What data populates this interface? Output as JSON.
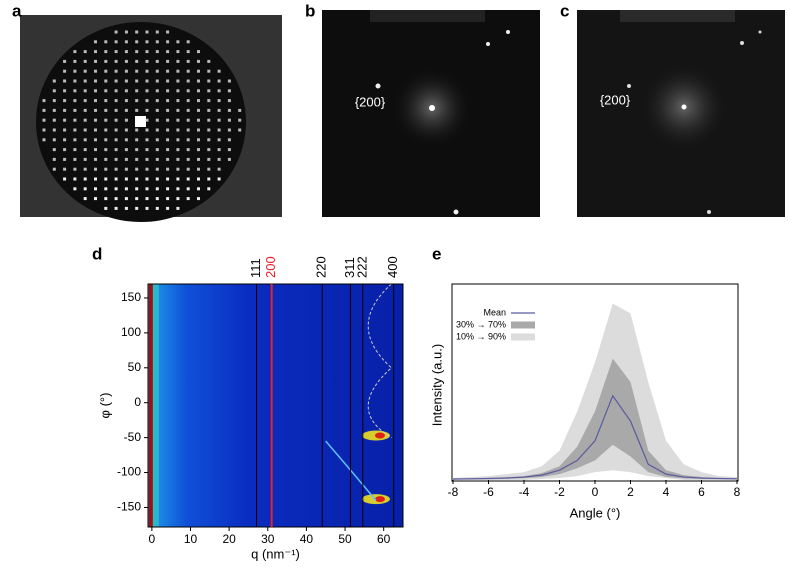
{
  "images": [
    {
      "panel": "a"
    },
    {
      "panel": "b",
      "annotation": "{200}"
    },
    {
      "panel": "c",
      "annotation": "{200}"
    }
  ],
  "chart_data": [
    {
      "type": "heatmap",
      "panel": "d",
      "x_label": "q (nm⁻¹)",
      "y_label": "φ (°)",
      "xlim": [
        -1,
        65
      ],
      "ylim": [
        -178,
        170
      ],
      "xticks": [
        0,
        10,
        20,
        30,
        40,
        50,
        60
      ],
      "yticks": [
        -150,
        -100,
        -50,
        0,
        50,
        100,
        150
      ],
      "reflections": [
        {
          "label": "111",
          "q": 27.1,
          "color": "#000000"
        },
        {
          "label": "200",
          "q": 31.0,
          "color": "#e8202a"
        },
        {
          "label": "220",
          "q": 44.1,
          "color": "#000000"
        },
        {
          "label": "311",
          "q": 51.4,
          "color": "#000000"
        },
        {
          "label": "222",
          "q": 54.6,
          "color": "#000000"
        },
        {
          "label": "400",
          "q": 62.6,
          "color": "#000000"
        }
      ]
    },
    {
      "type": "line",
      "panel": "e",
      "x_label": "Angle (°)",
      "y_label": "Intensity (a.u.)",
      "xlim": [
        -8,
        8
      ],
      "ylim": [
        0,
        1
      ],
      "xticks": [
        -8,
        -6,
        -4,
        -2,
        0,
        2,
        4,
        6,
        8
      ],
      "x": [
        -8,
        -7,
        -6,
        -5,
        -4,
        -3,
        -2,
        -1,
        0,
        1,
        2,
        3,
        4,
        5,
        6,
        7,
        8
      ],
      "series": [
        {
          "name": "Mean",
          "color": "#5a5aa0",
          "values": [
            0.005,
            0.006,
            0.008,
            0.01,
            0.015,
            0.025,
            0.05,
            0.1,
            0.2,
            0.43,
            0.3,
            0.08,
            0.03,
            0.015,
            0.01,
            0.008,
            0.006
          ]
        },
        {
          "name": "30% → 70%",
          "color": "#a9a9a9",
          "upper": [
            0.006,
            0.008,
            0.01,
            0.015,
            0.02,
            0.035,
            0.07,
            0.17,
            0.35,
            0.62,
            0.5,
            0.15,
            0.05,
            0.025,
            0.015,
            0.01,
            0.008
          ],
          "lower": [
            0.002,
            0.003,
            0.004,
            0.006,
            0.009,
            0.015,
            0.03,
            0.06,
            0.1,
            0.18,
            0.12,
            0.04,
            0.015,
            0.008,
            0.005,
            0.004,
            0.003
          ]
        },
        {
          "name": "10% → 90%",
          "color": "#dcdcdc",
          "upper": [
            0.01,
            0.015,
            0.02,
            0.03,
            0.04,
            0.07,
            0.15,
            0.35,
            0.6,
            0.9,
            0.85,
            0.5,
            0.2,
            0.08,
            0.04,
            0.02,
            0.015
          ],
          "lower": [
            0,
            0,
            0,
            0,
            0,
            0.005,
            0.01,
            0.02,
            0.04,
            0.05,
            0.04,
            0.02,
            0.01,
            0,
            0,
            0,
            0
          ]
        }
      ]
    }
  ]
}
